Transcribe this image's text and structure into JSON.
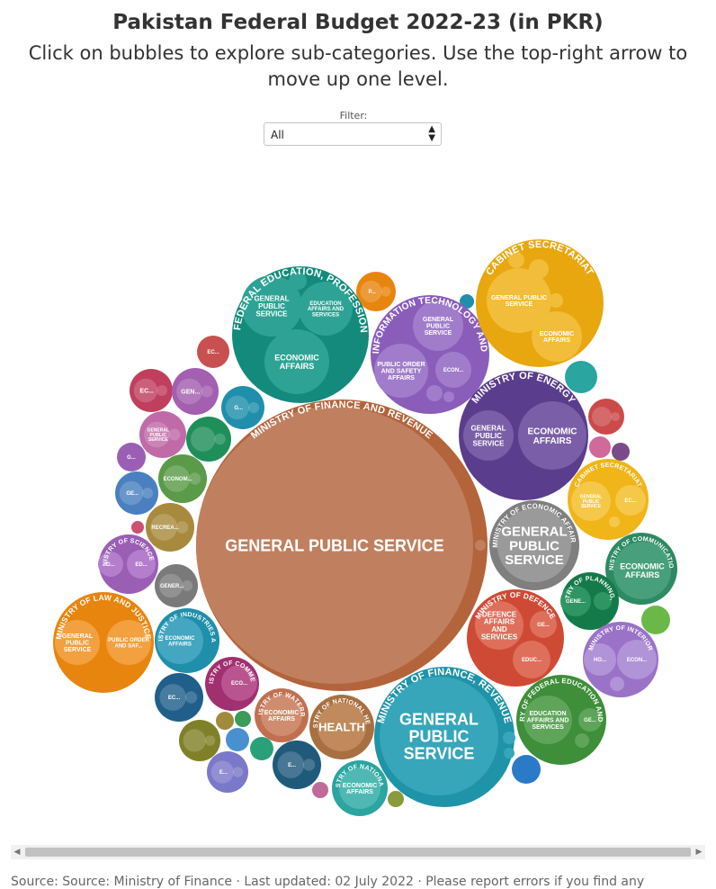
{
  "header": {
    "title": "Pakistan Federal Budget 2022-23 (in PKR)",
    "subtitle": "Click on bubbles to explore sub-categories. Use the top-right arrow to move up one level."
  },
  "filter": {
    "label": "Filter:",
    "selected": "All"
  },
  "footer": {
    "source": "Source: Source: Ministry of Finance · Last updated: 02 July 2022 · Please report errors if you find any"
  },
  "chart_data": {
    "type": "bubble",
    "groups": [
      {
        "name": "MINISTRY OF FINANCE AND REVENUE",
        "color": "#b3643b",
        "children": [
          {
            "label": "GENERAL PUBLIC SERVICE",
            "color": "#c08060"
          },
          {
            "label": "",
            "color": "#c08060"
          }
        ]
      },
      {
        "name": "MINISTRY OF FINANCE, REVENUE",
        "color": "#1f93a8",
        "children": [
          {
            "label": "GENERAL PUBLIC SERVICE",
            "color": "#37a6ba"
          },
          {
            "label": "",
            "color": "#37a6ba"
          },
          {
            "label": "",
            "color": "#37a6ba"
          }
        ]
      },
      {
        "name": "MINISTRY OF FEDERAL EDUCATION, PROFESSIONAL TRAINING",
        "color": "#138a7c",
        "children": [
          {
            "label": "GENERAL PUBLIC SERVICE",
            "color": "#2ea395"
          },
          {
            "label": "EDUCATION AFFAIRS AND SERVICES",
            "color": "#2ea395"
          },
          {
            "label": "ECONOMIC AFFAIRS",
            "color": "#2ea395"
          },
          {
            "label": "",
            "color": "#2ea395"
          }
        ]
      },
      {
        "name": "MINISTRY OF INFORMATION TECHNOLOGY AND TELECOMM...",
        "color": "#8a5dbb",
        "children": [
          {
            "label": "GENERAL PUBLIC SERVICE",
            "color": "#a17ccb"
          },
          {
            "label": "PUBLIC ORDER AND SAFETY AFFAIRS",
            "color": "#a17ccb"
          },
          {
            "label": "ECON...",
            "color": "#a17ccb"
          },
          {
            "label": "",
            "color": "#a17ccb"
          },
          {
            "label": "",
            "color": "#a17ccb"
          }
        ]
      },
      {
        "name": "CABINET SECRETARIAT",
        "color": "#e8a70f",
        "children": [
          {
            "label": "GENERAL PUBLIC SERVICE",
            "color": "#f2bd3a"
          },
          {
            "label": "ECONOMIC AFFAIRS",
            "color": "#f2bd3a"
          },
          {
            "label": "P...",
            "color": "#f2bd3a"
          },
          {
            "label": "",
            "color": "#f2bd3a"
          },
          {
            "label": "",
            "color": "#f2bd3a"
          }
        ]
      },
      {
        "name": "MINISTRY OF ENERGY",
        "color": "#5a3d8c",
        "children": [
          {
            "label": "GENERAL PUBLIC SERVICE",
            "color": "#7a5ea8"
          },
          {
            "label": "ECONOMIC AFFAIRS",
            "color": "#7a5ea8"
          }
        ]
      },
      {
        "name": "CABINET SECRETARIAT",
        "color": "#f0b519",
        "children": [
          {
            "label": "GENERAL PUBLIC SERVICE",
            "color": "#f5c84a"
          },
          {
            "label": "EC...",
            "color": "#f5c84a"
          },
          {
            "label": "",
            "color": "#f5c84a"
          }
        ]
      },
      {
        "name": "MINISTRY OF ECONOMIC AFFAIRS",
        "color": "#7f7f7f",
        "children": [
          {
            "label": "GENERAL PUBLIC SERVICE",
            "color": "#9a9a9a"
          }
        ]
      },
      {
        "name": "MINISTRY OF COMMUNICATIONS",
        "color": "#2d8a63",
        "children": [
          {
            "label": "ECONOMIC AFFAIRS",
            "color": "#47a07b"
          }
        ]
      },
      {
        "name": "MINISTRY OF PLANNING, DE...",
        "color": "#157a4a",
        "children": [
          {
            "label": "GENE...",
            "color": "#2e9563"
          },
          {
            "label": "",
            "color": "#2e9563"
          }
        ]
      },
      {
        "name": "MINISTRY OF DEFENCE",
        "color": "#cf4a35",
        "children": [
          {
            "label": "DEFENCE AFFAIRS AND SERVICES",
            "color": "#de6f5b"
          },
          {
            "label": "GE...",
            "color": "#de6f5b"
          },
          {
            "label": "EDUC...",
            "color": "#de6f5b"
          }
        ]
      },
      {
        "name": "MINISTRY OF INTERIOR",
        "color": "#9a72c8",
        "children": [
          {
            "label": "HO...",
            "color": "#b193d8"
          },
          {
            "label": "ECON...",
            "color": "#b193d8"
          },
          {
            "label": "",
            "color": "#b193d8"
          }
        ]
      },
      {
        "name": "MINISTRY OF FEDERAL EDUCATION AND PRO...",
        "color": "#3e8e3a",
        "children": [
          {
            "label": "EDUCATION AFFAIRS AND SERVICES",
            "color": "#5ea55a"
          },
          {
            "label": "GE...",
            "color": "#5ea55a"
          },
          {
            "label": "",
            "color": "#5ea55a"
          }
        ]
      },
      {
        "name": "MINISTRY OF LAW AND JUSTICE",
        "color": "#e8850f",
        "children": [
          {
            "label": "GENERAL PUBLIC SERVICE",
            "color": "#f2a040"
          },
          {
            "label": "PUBLIC ORDER AND SAF...",
            "color": "#f2a040"
          }
        ]
      },
      {
        "name": "MINISTRY OF INDUSTRIES AN...",
        "color": "#1f8fab",
        "children": [
          {
            "label": "ECONOMIC AFFAIRS",
            "color": "#44a6c0"
          }
        ]
      },
      {
        "name": "MINISTRY OF COMMERCE",
        "color": "#a03070",
        "children": [
          {
            "label": "ECO...",
            "color": "#b95490"
          }
        ]
      },
      {
        "name": "MINISTRY OF WATERRE...",
        "color": "#c07050",
        "children": [
          {
            "label": "ECONOMIC AFFAIRS",
            "color": "#d08c6e"
          }
        ]
      },
      {
        "name": "MINISTRY OF NATIONAL HEALT...",
        "color": "#a87040",
        "children": [
          {
            "label": "HEALTH",
            "color": "#c08a5c"
          }
        ]
      },
      {
        "name": "MINISTRY OF NATIONAL F...",
        "color": "#2aa5a0",
        "children": [
          {
            "label": "ECONOMIC AFFAIRS",
            "color": "#50b8b3"
          }
        ]
      },
      {
        "name": "MINISTRY OF SCIENCE A...",
        "color": "#9a5fb5",
        "children": [
          {
            "label": "G...",
            "color": "#b47ecc"
          },
          {
            "label": "ED...",
            "color": "#b47ecc"
          }
        ]
      }
    ],
    "single_bubbles": [
      {
        "label": "P...",
        "color": "#e8850f"
      },
      {
        "label": "EC...",
        "color": "#c95050"
      },
      {
        "label": "EC...",
        "color": "#c03e5e"
      },
      {
        "label": "GEN...",
        "color": "#a35fb0"
      },
      {
        "label": "G...",
        "color": "#1f8fab"
      },
      {
        "label": "GENERAL PUBLIC SERVICE",
        "color": "#c06aa8"
      },
      {
        "label": "",
        "color": "#1f8f5a"
      },
      {
        "label": "G...",
        "color": "#9a5fb5"
      },
      {
        "label": "ECONOM...",
        "color": "#5a9a48"
      },
      {
        "label": "GE...",
        "color": "#4a80c0"
      },
      {
        "label": "RECREA...",
        "color": "#a88a3e"
      },
      {
        "label": "GENER...",
        "color": "#7a7a7a"
      },
      {
        "label": "EC...",
        "color": "#1f5f8a"
      },
      {
        "label": "E...",
        "color": "#7a78c8"
      },
      {
        "label": "E...",
        "color": "#1f5a7a"
      },
      {
        "label": "",
        "color": "#1f8fab"
      },
      {
        "label": "",
        "color": "#2aa5a0"
      },
      {
        "label": "",
        "color": "#cc4a4a"
      },
      {
        "label": "",
        "color": "#d06a9a"
      },
      {
        "label": "",
        "color": "#7a4a8a"
      },
      {
        "label": "",
        "color": "#6ab848"
      },
      {
        "label": "",
        "color": "#2a7ac8"
      },
      {
        "label": "",
        "color": "#c06a9a"
      },
      {
        "label": "",
        "color": "#808028"
      },
      {
        "label": "",
        "color": "#a08a3e"
      },
      {
        "label": "",
        "color": "#3e9a5a"
      },
      {
        "label": "",
        "color": "#4a90d0"
      },
      {
        "label": "",
        "color": "#2aa07a"
      },
      {
        "label": "",
        "color": "#cc5070"
      },
      {
        "label": "",
        "color": "#8a9a3e"
      }
    ]
  }
}
